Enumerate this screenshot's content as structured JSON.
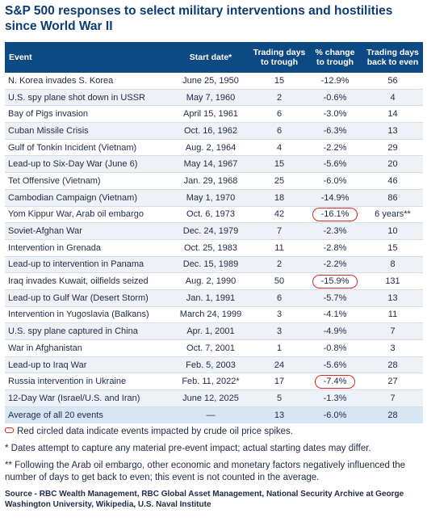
{
  "title": "S&P 500 responses to select military interventions and hostilities since World War II",
  "headers": {
    "event": "Event",
    "start": "Start date*",
    "trough_days_1": "Trading days",
    "trough_days_2": "to trough",
    "change_1": "% change",
    "change_2": "to trough",
    "even_1": "Trading days",
    "even_2": "back to even"
  },
  "rows": [
    {
      "event": "N. Korea invades S. Korea",
      "start": "June 25, 1950",
      "days": "15",
      "change": "-12.9%",
      "even": "56",
      "circled": false
    },
    {
      "event": "U.S. spy plane shot down in USSR",
      "start": "May 7, 1960",
      "days": "2",
      "change": "-0.6%",
      "even": "4",
      "circled": false
    },
    {
      "event": "Bay of Pigs invasion",
      "start": "April 15, 1961",
      "days": "6",
      "change": "-3.0%",
      "even": "14",
      "circled": false
    },
    {
      "event": "Cuban Missile Crisis",
      "start": "Oct. 16, 1962",
      "days": "6",
      "change": "-6.3%",
      "even": "13",
      "circled": false
    },
    {
      "event": "Gulf of Tonkin Incident (Vietnam)",
      "start": "Aug. 2, 1964",
      "days": "4",
      "change": "-2.2%",
      "even": "29",
      "circled": false
    },
    {
      "event": "Lead-up to Six-Day War (June 6)",
      "start": "May 14, 1967",
      "days": "15",
      "change": "-5.6%",
      "even": "20",
      "circled": false
    },
    {
      "event": "Tet Offensive (Vietnam)",
      "start": "Jan. 29, 1968",
      "days": "25",
      "change": "-6.0%",
      "even": "46",
      "circled": false
    },
    {
      "event": "Cambodian Campaign (Vietnam)",
      "start": "May 1, 1970",
      "days": "18",
      "change": "-14.9%",
      "even": "86",
      "circled": false
    },
    {
      "event": "Yom Kippur War, Arab oil embargo",
      "start": "Oct. 6, 1973",
      "days": "42",
      "change": "-16.1%",
      "even": "6 years**",
      "circled": true
    },
    {
      "event": "Soviet-Afghan War",
      "start": "Dec. 24, 1979",
      "days": "7",
      "change": "-2.3%",
      "even": "10",
      "circled": false
    },
    {
      "event": "Intervention in Grenada",
      "start": "Oct. 25, 1983",
      "days": "11",
      "change": "-2.8%",
      "even": "15",
      "circled": false
    },
    {
      "event": "Lead-up to intervention in Panama",
      "start": "Dec. 15, 1989",
      "days": "2",
      "change": "-2.2%",
      "even": "8",
      "circled": false
    },
    {
      "event": "Iraq invades Kuwait, oilfields seized",
      "start": "Aug. 2, 1990",
      "days": "50",
      "change": "-15.9%",
      "even": "131",
      "circled": true
    },
    {
      "event": "Lead-up to Gulf War (Desert Storm)",
      "start": "Jan. 1, 1991",
      "days": "6",
      "change": "-5.7%",
      "even": "13",
      "circled": false
    },
    {
      "event": "Intervention in Yugoslavia (Balkans)",
      "start": "March 24, 1999",
      "days": "3",
      "change": "-4.1%",
      "even": "11",
      "circled": false
    },
    {
      "event": "U.S. spy plane captured in China",
      "start": "Apr. 1, 2001",
      "days": "3",
      "change": "-4.9%",
      "even": "7",
      "circled": false
    },
    {
      "event": "War in Afghanistan",
      "start": "Oct. 7, 2001",
      "days": "1",
      "change": "-0.8%",
      "even": "3",
      "circled": false
    },
    {
      "event": "Lead-up to Iraq War",
      "start": "Feb. 5, 2003",
      "days": "24",
      "change": "-5.6%",
      "even": "28",
      "circled": false
    },
    {
      "event": "Russia intervention in Ukraine",
      "start": "Feb. 11, 2022*",
      "days": "17",
      "change": "-7.4%",
      "even": "27",
      "circled": true
    },
    {
      "event": "12-Day War (Israel/U.S. and Iran)",
      "start": "June 12, 2025",
      "days": "5",
      "change": "-1.3%",
      "even": "7",
      "circled": false
    }
  ],
  "average": {
    "event": "Average of all 20 events",
    "start": "—",
    "days": "13",
    "change": "-6.0%",
    "even": "28"
  },
  "notes": {
    "legend": "Red circled data indicate events impacted by crude oil price spikes.",
    "dates": "* Dates attempt to capture any material pre-event impact; actual starting dates may differ.",
    "embargo": "** Following the Arab oil embargo, other economic and monetary factors negatively influenced the number of days to get back to even; this event is not counted in the average.",
    "source": "Source - RBC Wealth Management, RBC Global Asset Management, National Security Archive at George Washington University, Wikipedia, U.S. Naval Institute"
  },
  "colors": {
    "header_bg": "#0d4a84",
    "title": "#0d3b73",
    "circle": "#d9262c",
    "avg_bg": "#d6e6f4"
  }
}
